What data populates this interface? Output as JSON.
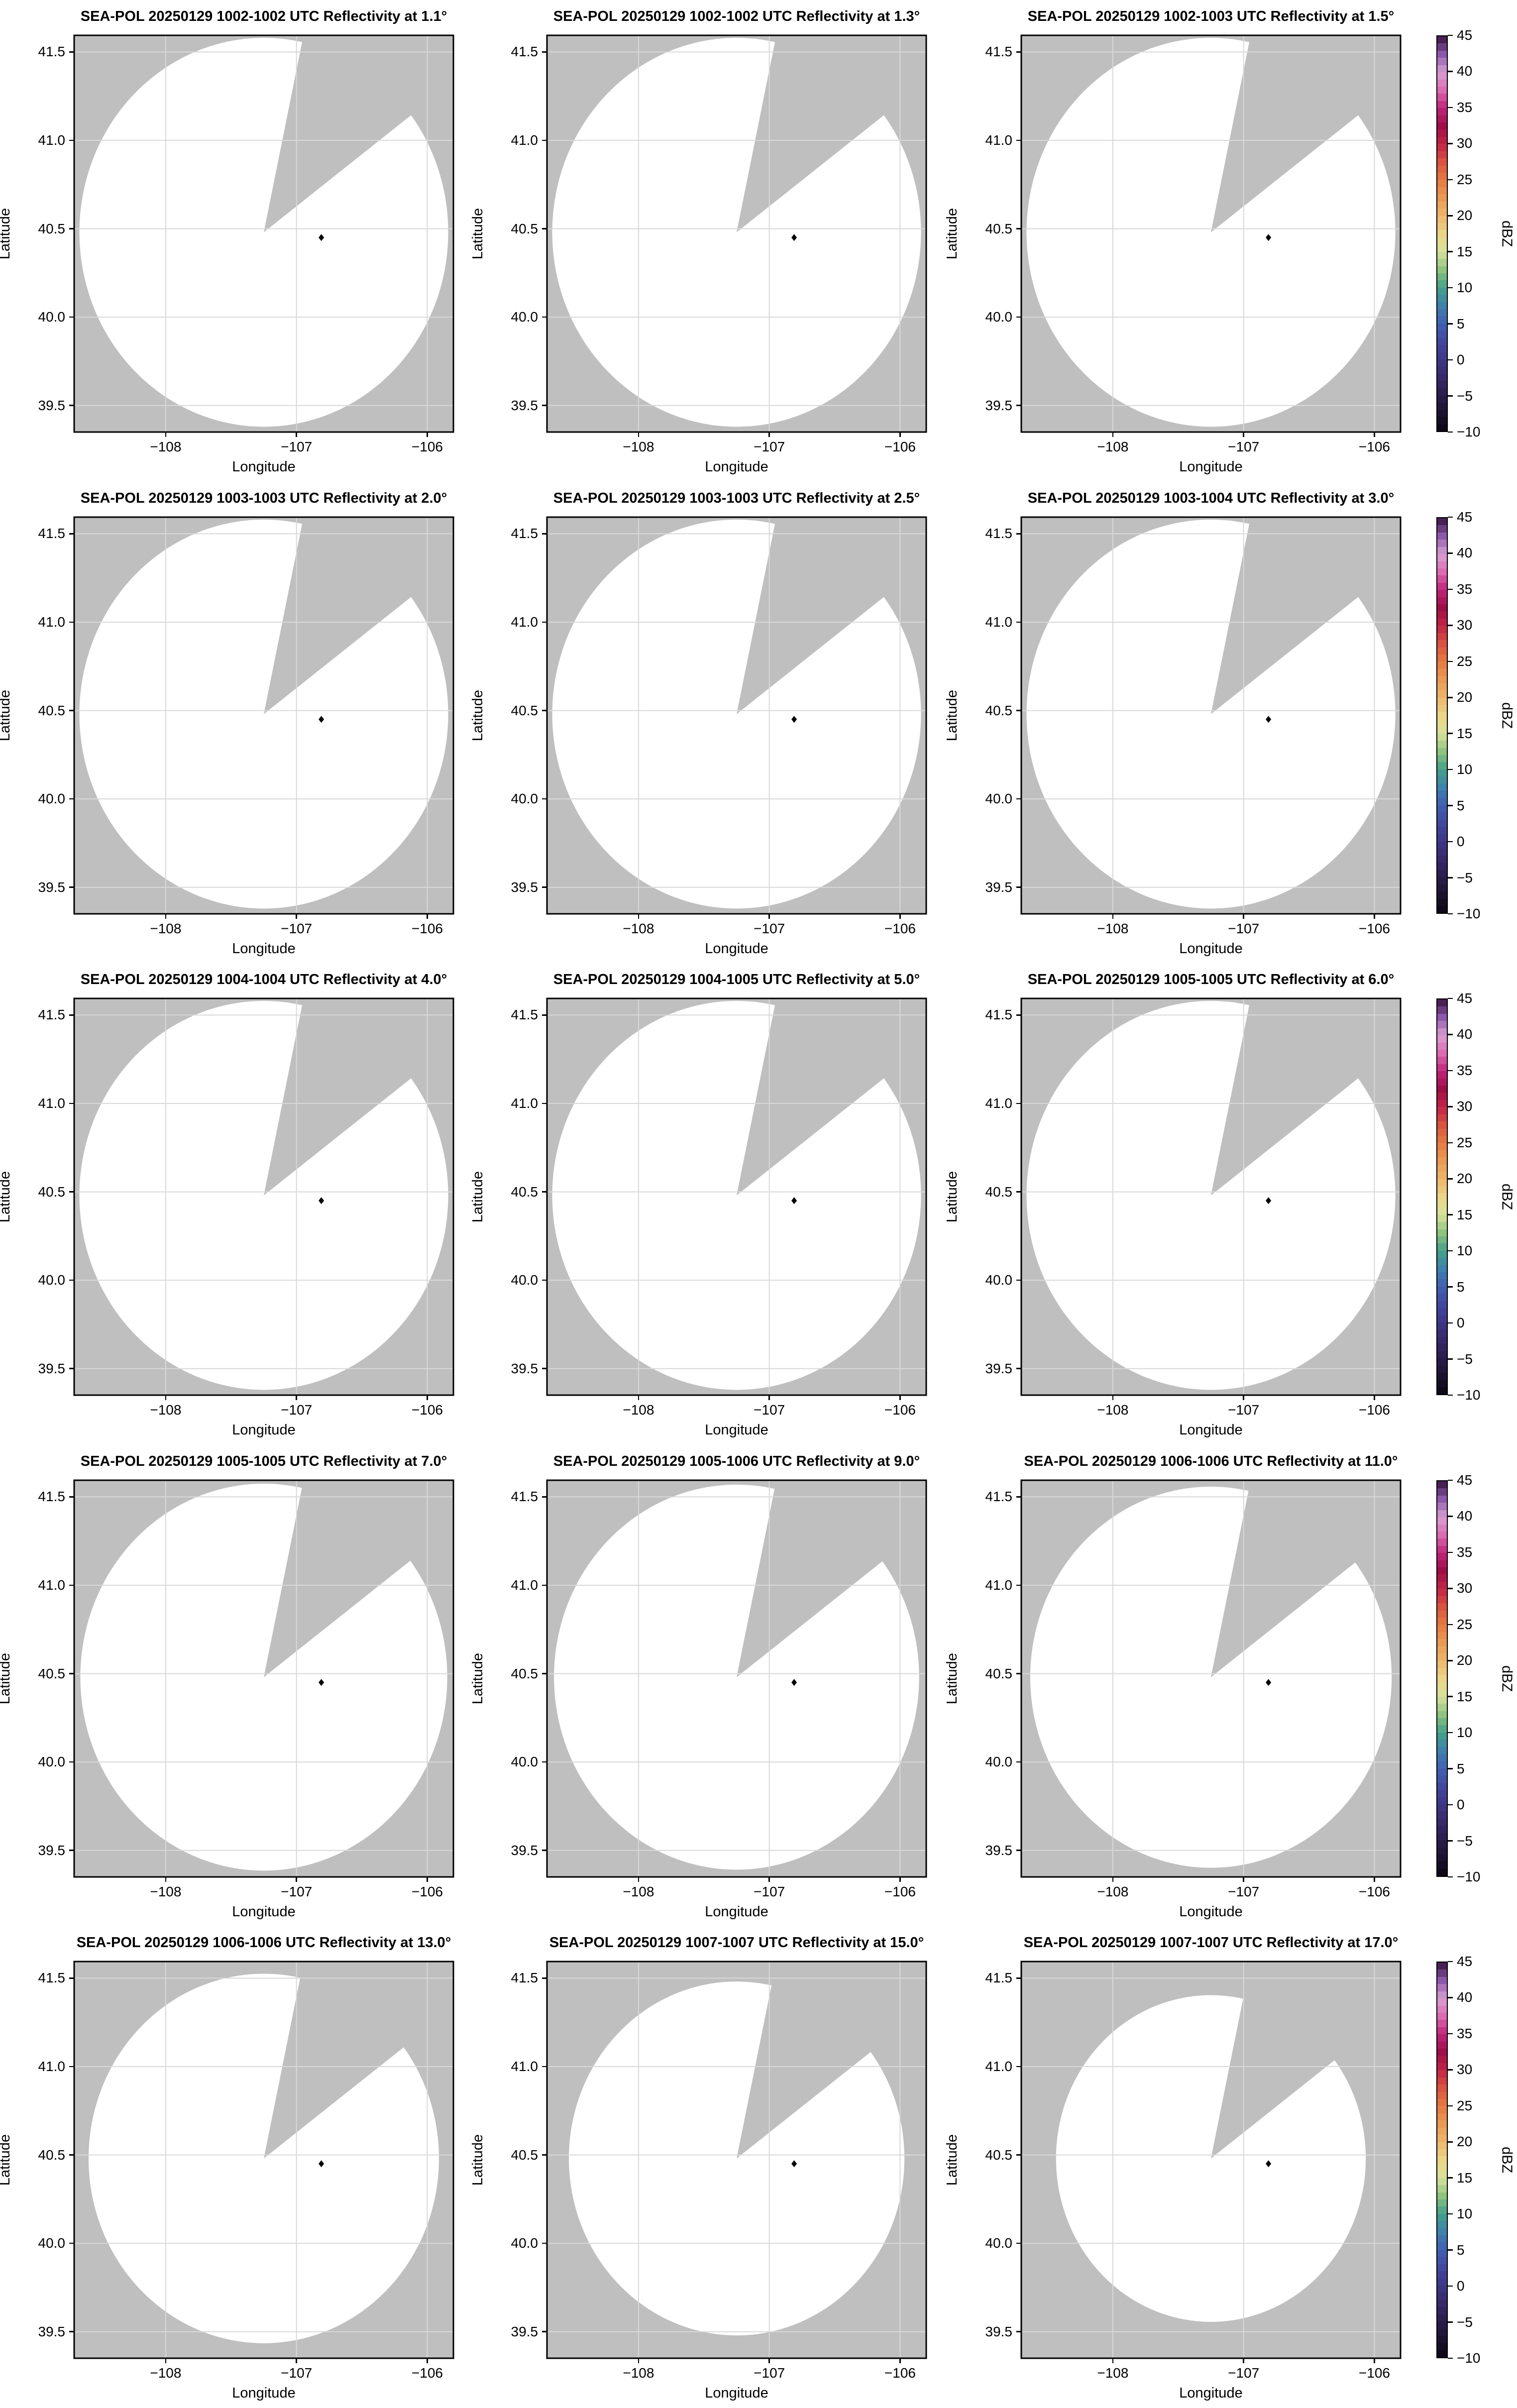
{
  "app": {
    "type": "radar-multipanel-figure",
    "instrument": "SEA-POL",
    "date": "20250129",
    "product": "Reflectivity",
    "units": "dBZ"
  },
  "axes": {
    "xlabel": "Longitude",
    "ylabel": "Latitude",
    "x_tick_labels": [
      "−108",
      "−107",
      "−106"
    ],
    "y_tick_labels": [
      "41.5",
      "41.0",
      "40.5",
      "40.0",
      "39.5"
    ]
  },
  "colorbar": {
    "label": "dBZ",
    "tick_labels": [
      "45",
      "40",
      "35",
      "30",
      "25",
      "20",
      "15",
      "10",
      "5",
      "0",
      "−5",
      "−10"
    ],
    "vmin": -10,
    "vmax": 45
  },
  "panels": [
    {
      "title": "SEA-POL 20250129 1002-1002 UTC Reflectivity at 1.1°",
      "time_utc": "1002-1002",
      "elevation_deg": 1.1
    },
    {
      "title": "SEA-POL 20250129 1002-1002 UTC Reflectivity at 1.3°",
      "time_utc": "1002-1002",
      "elevation_deg": 1.3
    },
    {
      "title": "SEA-POL 20250129 1002-1003 UTC Reflectivity at 1.5°",
      "time_utc": "1002-1003",
      "elevation_deg": 1.5
    },
    {
      "title": "SEA-POL 20250129 1003-1003 UTC Reflectivity at 2.0°",
      "time_utc": "1003-1003",
      "elevation_deg": 2.0
    },
    {
      "title": "SEA-POL 20250129 1003-1003 UTC Reflectivity at 2.5°",
      "time_utc": "1003-1003",
      "elevation_deg": 2.5
    },
    {
      "title": "SEA-POL 20250129 1003-1004 UTC Reflectivity at 3.0°",
      "time_utc": "1003-1004",
      "elevation_deg": 3.0
    },
    {
      "title": "SEA-POL 20250129 1004-1004 UTC Reflectivity at 4.0°",
      "time_utc": "1004-1004",
      "elevation_deg": 4.0
    },
    {
      "title": "SEA-POL 20250129 1004-1005 UTC Reflectivity at 5.0°",
      "time_utc": "1004-1005",
      "elevation_deg": 5.0
    },
    {
      "title": "SEA-POL 20250129 1005-1005 UTC Reflectivity at 6.0°",
      "time_utc": "1005-1005",
      "elevation_deg": 6.0
    },
    {
      "title": "SEA-POL 20250129 1005-1005 UTC Reflectivity at 7.0°",
      "time_utc": "1005-1005",
      "elevation_deg": 7.0
    },
    {
      "title": "SEA-POL 20250129 1005-1006 UTC Reflectivity at 9.0°",
      "time_utc": "1005-1006",
      "elevation_deg": 9.0
    },
    {
      "title": "SEA-POL 20250129 1006-1006 UTC Reflectivity at 11.0°",
      "time_utc": "1006-1006",
      "elevation_deg": 11.0
    },
    {
      "title": "SEA-POL 20250129 1006-1006 UTC Reflectivity at 13.0°",
      "time_utc": "1006-1006",
      "elevation_deg": 13.0
    },
    {
      "title": "SEA-POL 20250129 1007-1007 UTC Reflectivity at 15.0°",
      "time_utc": "1007-1007",
      "elevation_deg": 15.0
    },
    {
      "title": "SEA-POL 20250129 1007-1007 UTC Reflectivity at 17.0°",
      "time_utc": "1007-1007",
      "elevation_deg": 17.0
    }
  ],
  "colors": {
    "page_background": "#ffffff",
    "nodata_gray": "#bfbfbf",
    "scan_fill": "#ffffff",
    "gridline": "#d9d9d9",
    "spine": "#000000",
    "marker": "#000000",
    "colormap_name": "ChaseSpectral-like (dBZ)",
    "colormap_anchors": [
      [
        -10,
        "#0a0613"
      ],
      [
        -7.5,
        "#1c1230"
      ],
      [
        -5,
        "#2b1c4b"
      ],
      [
        -2.5,
        "#37296a"
      ],
      [
        0,
        "#3e3786"
      ],
      [
        2.5,
        "#42489e"
      ],
      [
        5,
        "#4160b2"
      ],
      [
        7.5,
        "#3f82ac"
      ],
      [
        10,
        "#45a189"
      ],
      [
        12.5,
        "#8fc47f"
      ],
      [
        15,
        "#d8e29c"
      ],
      [
        17.5,
        "#ecd488"
      ],
      [
        20,
        "#ecb76c"
      ],
      [
        22.5,
        "#ea9a54"
      ],
      [
        25,
        "#e57a43"
      ],
      [
        27.5,
        "#da5340"
      ],
      [
        30,
        "#c22447"
      ],
      [
        32.5,
        "#9e0e49"
      ],
      [
        35,
        "#c02579"
      ],
      [
        37.5,
        "#dc6cb0"
      ],
      [
        40,
        "#d89fd3"
      ],
      [
        42.5,
        "#8d58ab"
      ],
      [
        45,
        "#38123f"
      ]
    ]
  },
  "chart_data": {
    "type": "heatmap",
    "subtype": "radar_ppi_elevation_grid",
    "title": "SEA-POL 20250129 Reflectivity PPI sweeps 1002-1007 UTC",
    "grid": {
      "rows": 5,
      "cols": 3
    },
    "xlabel": "Longitude",
    "ylabel": "Latitude",
    "xlim": [
      -108.7,
      -105.8
    ],
    "ylim": [
      39.35,
      41.594
    ],
    "x_ticks": [
      -108,
      -107,
      -106
    ],
    "y_ticks": [
      41.5,
      41.0,
      40.5,
      40.0,
      39.5
    ],
    "grid_on": true,
    "radar_center_lonlat": [
      -107.25,
      40.48
    ],
    "marker_lonlat": [
      -106.81,
      40.45
    ],
    "scan_radius_deg": {
      "lon": 1.41,
      "lat": 1.1
    },
    "blocked_sector_azimuth_deg": [
      12,
      53
    ],
    "colorbar_range_dbz": [
      -10,
      45
    ],
    "colorbar_tick_step": 5,
    "colorbar_position": "right of each row",
    "values": "No reflectivity echoes above minimum displayed; scan coverage area is blank (white), surroundings are no-data gray",
    "panels": [
      {
        "elevation_deg": 1.1,
        "time_utc": "1002-1002",
        "scan_scale": 1.0
      },
      {
        "elevation_deg": 1.3,
        "time_utc": "1002-1002",
        "scan_scale": 1.0
      },
      {
        "elevation_deg": 1.5,
        "time_utc": "1002-1003",
        "scan_scale": 1.0
      },
      {
        "elevation_deg": 2.0,
        "time_utc": "1003-1003",
        "scan_scale": 1.0
      },
      {
        "elevation_deg": 2.5,
        "time_utc": "1003-1003",
        "scan_scale": 1.0
      },
      {
        "elevation_deg": 3.0,
        "time_utc": "1003-1004",
        "scan_scale": 1.0
      },
      {
        "elevation_deg": 4.0,
        "time_utc": "1004-1004",
        "scan_scale": 1.0
      },
      {
        "elevation_deg": 5.0,
        "time_utc": "1004-1005",
        "scan_scale": 1.0
      },
      {
        "elevation_deg": 6.0,
        "time_utc": "1005-1005",
        "scan_scale": 1.0
      },
      {
        "elevation_deg": 7.0,
        "time_utc": "1005-1005",
        "scan_scale": 0.995
      },
      {
        "elevation_deg": 9.0,
        "time_utc": "1005-1006",
        "scan_scale": 0.99
      },
      {
        "elevation_deg": 11.0,
        "time_utc": "1006-1006",
        "scan_scale": 0.98
      },
      {
        "elevation_deg": 13.0,
        "time_utc": "1006-1006",
        "scan_scale": 0.95
      },
      {
        "elevation_deg": 15.0,
        "time_utc": "1007-1007",
        "scan_scale": 0.91
      },
      {
        "elevation_deg": 17.0,
        "time_utc": "1007-1007",
        "scan_scale": 0.84
      }
    ]
  }
}
